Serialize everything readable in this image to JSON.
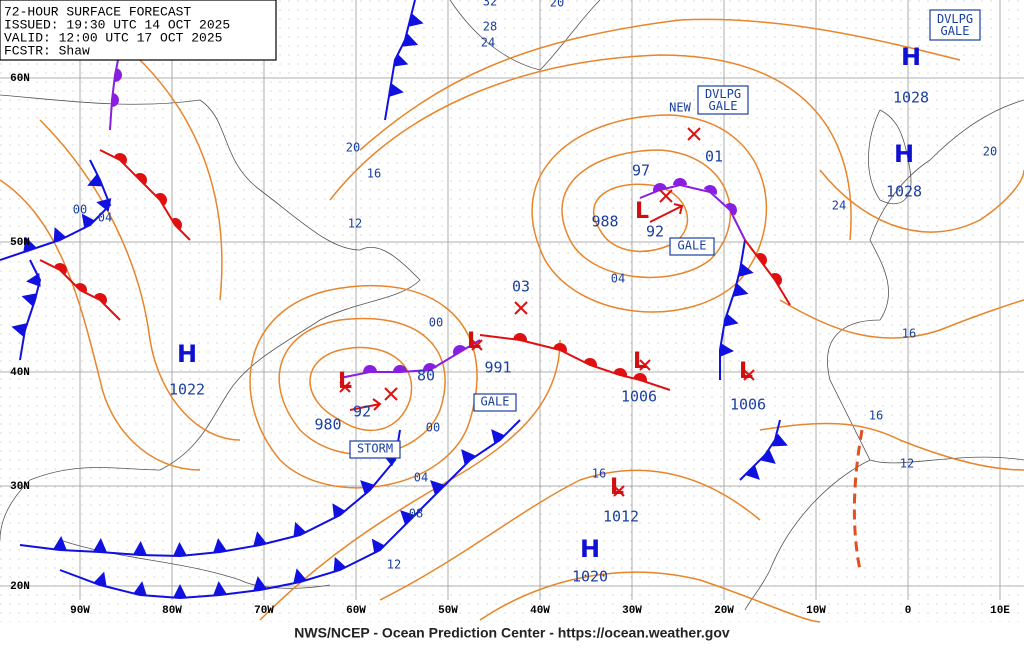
{
  "header": {
    "lines": [
      "72-HOUR SURFACE FORECAST",
      "ISSUED: 19:30 UTC 14 OCT 2025",
      "VALID:  12:00 UTC 17 OCT 2025",
      "FCSTR:  Shaw"
    ]
  },
  "latitudes": [
    "60N",
    "50N",
    "40N",
    "30N",
    "20N"
  ],
  "longitudes": [
    "90W",
    "80W",
    "70W",
    "60W",
    "50W",
    "40W",
    "30W",
    "20W",
    "10W",
    "0",
    "10E"
  ],
  "highs": [
    {
      "symbol": "H",
      "pressure": "1028"
    },
    {
      "symbol": "H",
      "pressure": "1028"
    },
    {
      "symbol": "H",
      "pressure": "1022"
    },
    {
      "symbol": "H",
      "pressure": "1020"
    }
  ],
  "lows": [
    {
      "symbol": "L",
      "pressure": "988"
    },
    {
      "symbol": "L",
      "pressure": "980"
    },
    {
      "symbol": "L",
      "pressure": "991"
    },
    {
      "symbol": "L",
      "pressure": "1006"
    },
    {
      "symbol": "L",
      "pressure": "1006"
    },
    {
      "symbol": "L",
      "pressure": "1012"
    }
  ],
  "past_pressures": [
    "92",
    "97",
    "01",
    "92",
    "80",
    "03"
  ],
  "warnings": [
    "DVLPG GALE",
    "DVLPG GALE",
    "NEW",
    "GALE",
    "STORM",
    "GALE"
  ],
  "isobar_labels": [
    "32",
    "28",
    "24",
    "20",
    "20",
    "16",
    "12",
    "00",
    "04",
    "00",
    "00",
    "04",
    "08",
    "12",
    "16",
    "04",
    "24",
    "20",
    "16",
    "16",
    "12"
  ],
  "footer": "NWS/NCEP - Ocean Prediction Center - https://ocean.weather.gov"
}
